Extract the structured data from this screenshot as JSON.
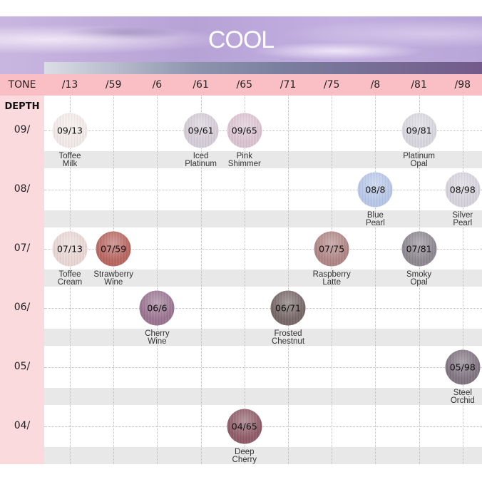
{
  "header": {
    "title": "COOL"
  },
  "tone_label": "TONE",
  "depth_label": "DEPTH",
  "tones": [
    "/13",
    "/59",
    "/6",
    "/61",
    "/65",
    "/71",
    "/75",
    "/8",
    "/81",
    "/98"
  ],
  "depths": [
    "09/",
    "08/",
    "07/",
    "06/",
    "05/",
    "04/"
  ],
  "shades": [
    {
      "code": "09/13",
      "name": "Toffee\nMilk",
      "depth": 0,
      "tone": 0,
      "color": "#f4ecea"
    },
    {
      "code": "09/61",
      "name": "Iced\nPlatinum",
      "depth": 0,
      "tone": 3,
      "color": "#d6cdd8"
    },
    {
      "code": "09/65",
      "name": "Pink\nShimmer",
      "depth": 0,
      "tone": 4,
      "color": "#dcc4d2"
    },
    {
      "code": "09/81",
      "name": "Platinum\nOpal",
      "depth": 0,
      "tone": 8,
      "color": "#d9d8e0"
    },
    {
      "code": "08/8",
      "name": "Blue\nPearl",
      "depth": 1,
      "tone": 7,
      "color": "#b8c8ea"
    },
    {
      "code": "08/98",
      "name": "Silver\nPearl",
      "depth": 1,
      "tone": 9,
      "color": "#d8d4de"
    },
    {
      "code": "07/13",
      "name": "Toffee\nCream",
      "depth": 2,
      "tone": 0,
      "color": "#ead8d6"
    },
    {
      "code": "07/59",
      "name": "Strawberry\nWine",
      "depth": 2,
      "tone": 1,
      "color": "#b9655f"
    },
    {
      "code": "07/75",
      "name": "Raspberry\nLatte",
      "depth": 2,
      "tone": 6,
      "color": "#b08584"
    },
    {
      "code": "07/81",
      "name": "Smoky\nOpal",
      "depth": 2,
      "tone": 8,
      "color": "#8d8790"
    },
    {
      "code": "06/6",
      "name": "Cherry\nWine",
      "depth": 3,
      "tone": 2,
      "color": "#9a7390"
    },
    {
      "code": "06/71",
      "name": "Frosted\nChestnut",
      "depth": 3,
      "tone": 5,
      "color": "#766666"
    },
    {
      "code": "05/98",
      "name": "Steel\nOrchid",
      "depth": 4,
      "tone": 9,
      "color": "#7f737f"
    },
    {
      "code": "04/65",
      "name": "Deep\nCherry",
      "depth": 5,
      "tone": 4,
      "color": "#8e5a66"
    }
  ]
}
